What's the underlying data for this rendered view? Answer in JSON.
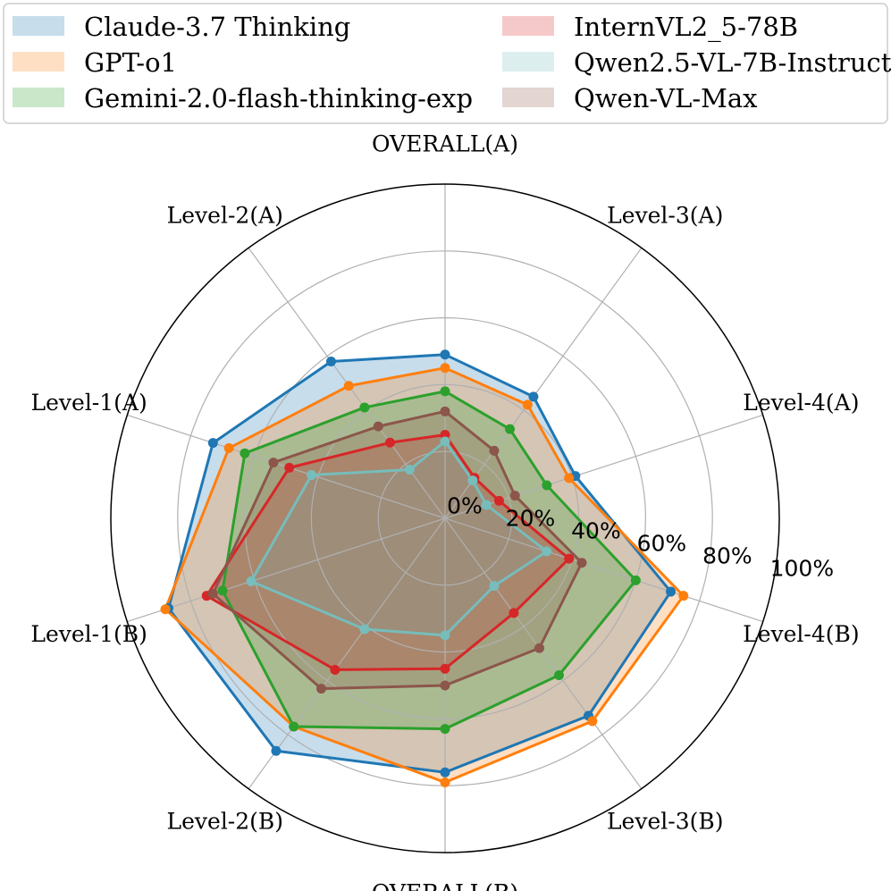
{
  "chart_data": {
    "type": "radar",
    "title": "",
    "axes": [
      "OVERALL(A)",
      "Level-3(A)",
      "Level-4(A)",
      "Level-4(B)",
      "Level-3(B)",
      "OVERALL(B)",
      "Level-2(B)",
      "Level-1(B)",
      "Level-1(A)",
      "Level-2(A)"
    ],
    "radial_ticks": [
      0,
      20,
      40,
      60,
      80,
      100
    ],
    "radial_tick_labels": [
      "0%",
      "20%",
      "40%",
      "60%",
      "80%",
      "100%"
    ],
    "rlim": [
      0,
      100
    ],
    "grid": true,
    "legend_position": "top",
    "series": [
      {
        "name": "Claude-3.7 Thinking",
        "color": "#1f77b4",
        "values": [
          49,
          45,
          41,
          71,
          73,
          76,
          86,
          87,
          73,
          58
        ]
      },
      {
        "name": "GPT-o1",
        "color": "#ff7f0e",
        "values": [
          45,
          42,
          39,
          75,
          75,
          79,
          77,
          88,
          68,
          49
        ]
      },
      {
        "name": "Gemini-2.0-flash-thinking-exp",
        "color": "#2ca02c",
        "values": [
          38,
          33,
          32,
          60,
          58,
          63,
          77,
          70,
          63,
          41
        ]
      },
      {
        "name": "InternVL2_5-78B",
        "color": "#d62728",
        "values": [
          25,
          15,
          17,
          39,
          35,
          45,
          56,
          75,
          49,
          28
        ]
      },
      {
        "name": "Qwen2.5-VL-7B-Instruct",
        "color": "#76bdbb",
        "values": [
          23,
          14,
          13,
          32,
          25,
          35,
          41,
          61,
          42,
          18
        ]
      },
      {
        "name": "Qwen-VL-Max",
        "color": "#8c564b",
        "values": [
          32,
          25,
          22,
          43,
          48,
          50,
          63,
          73,
          54,
          34
        ]
      }
    ]
  }
}
